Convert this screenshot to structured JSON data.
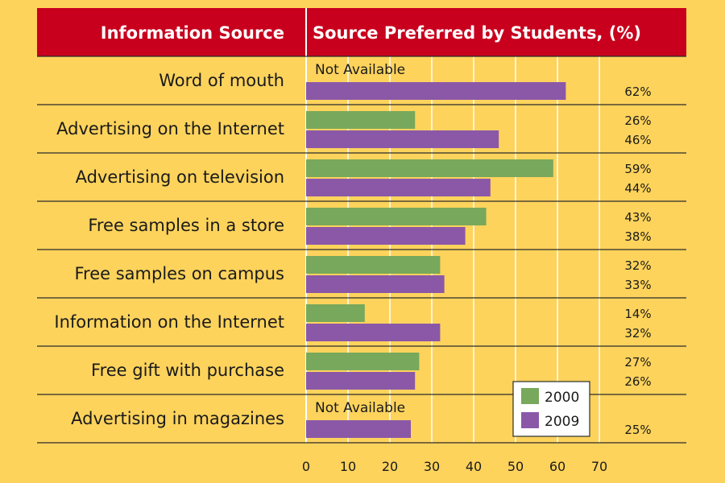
{
  "chart_data": {
    "type": "bar",
    "orientation": "horizontal",
    "header_left": "Information Source",
    "header_right": "Source Preferred by Students, (%)",
    "categories": [
      "Word of mouth",
      "Advertising on the Internet",
      "Advertising on television",
      "Free samples in a store",
      "Free samples on campus",
      "Information on the Internet",
      "Free gift with purchase",
      "Advertising in magazines"
    ],
    "series": [
      {
        "name": "2000",
        "color": "#78A85C",
        "values": [
          null,
          26,
          59,
          43,
          32,
          14,
          27,
          null
        ]
      },
      {
        "name": "2009",
        "color": "#8B58A8",
        "values": [
          62,
          46,
          44,
          38,
          33,
          32,
          26,
          25
        ]
      }
    ],
    "value_labels": {
      "2000": [
        null,
        "26%",
        "59%",
        "43%",
        "32%",
        "14%",
        "27%",
        null
      ],
      "2009": [
        "62%",
        "46%",
        "44%",
        "38%",
        "33%",
        "32%",
        "26%",
        "25%"
      ]
    },
    "not_available_text": "Not Available",
    "xticks": [
      "0",
      "10",
      "20",
      "30",
      "40",
      "50",
      "60",
      "70"
    ],
    "xlim": [
      0,
      70
    ],
    "grid": true,
    "legend_position": "bottom-right",
    "colors": {
      "header": "#C8001E",
      "background": "#FDD35C",
      "grid": "#FFFFFF",
      "row_line": "#2b2b2b"
    }
  }
}
